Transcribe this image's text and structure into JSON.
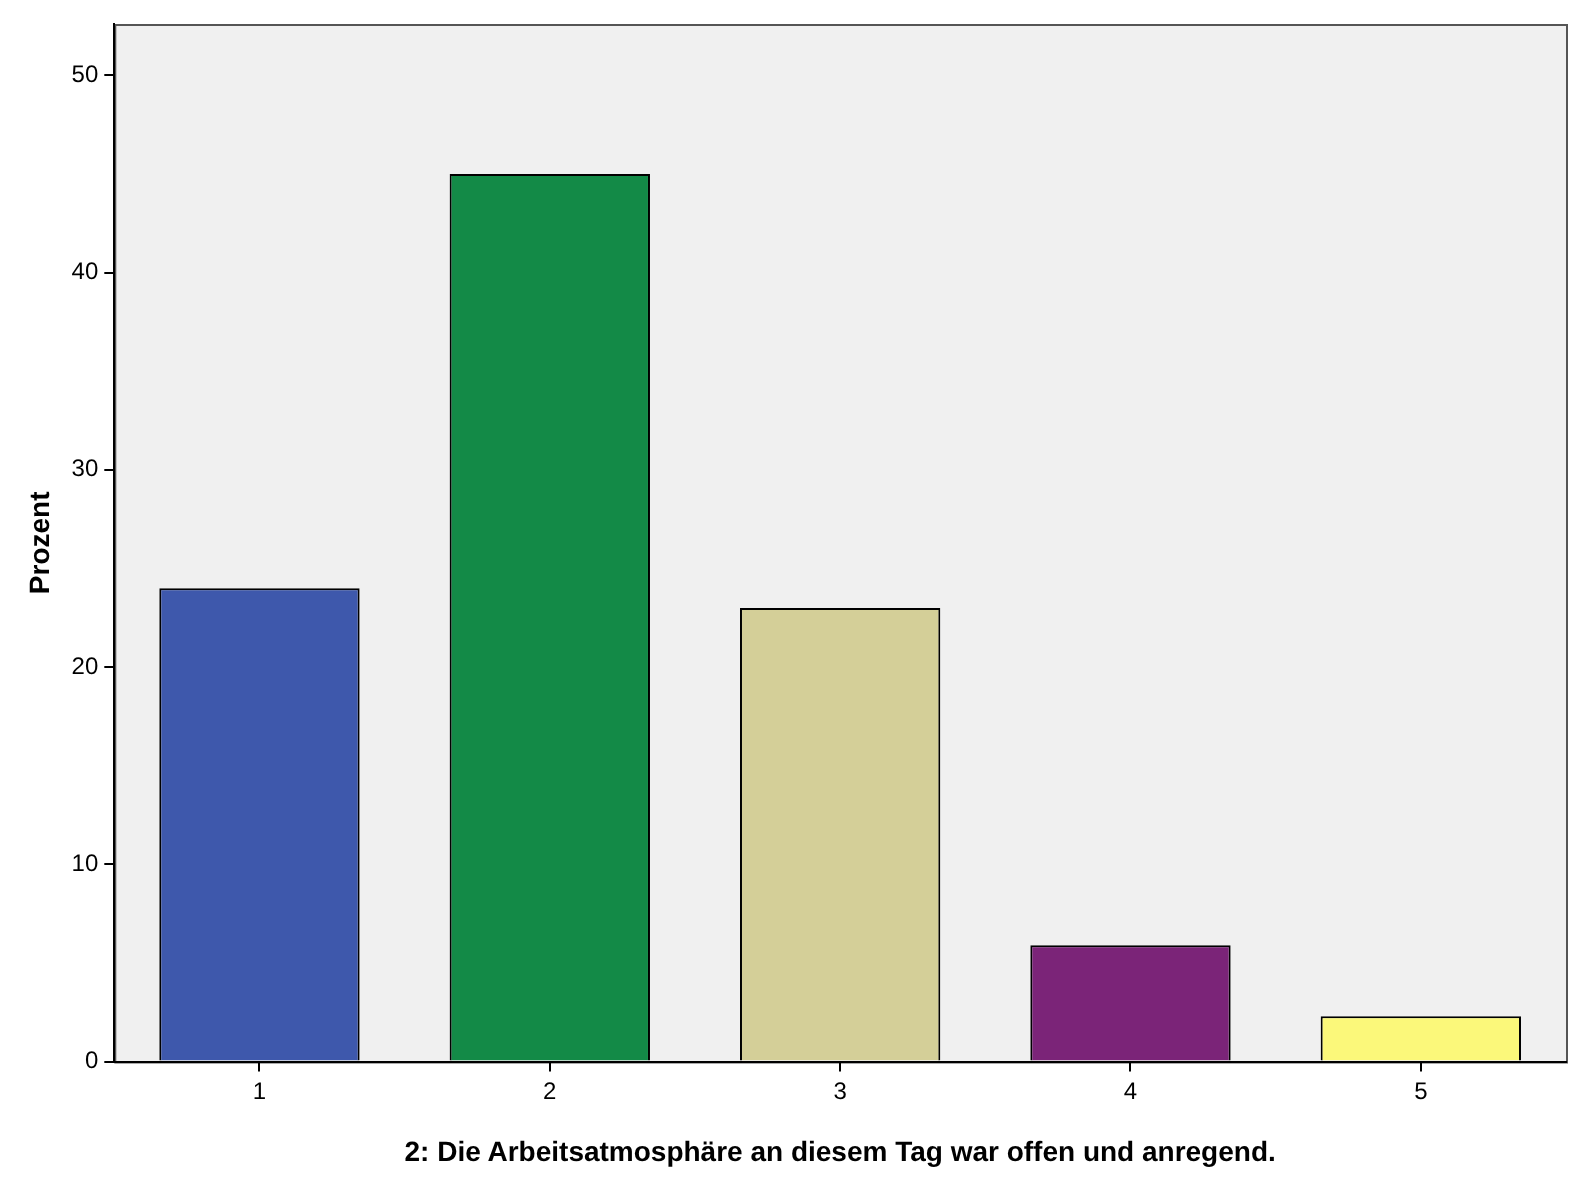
{
  "chart_data": {
    "type": "bar",
    "xlabel": "2: Die Arbeitsatmosphäre an diesem Tag war offen und anregend.",
    "ylabel": "Prozent",
    "categories": [
      "1",
      "2",
      "3",
      "4",
      "5"
    ],
    "values": [
      24,
      45,
      23,
      5.9,
      2.3
    ],
    "colors": [
      "#3e58ac",
      "#138a47",
      "#d4cf98",
      "#7b2478",
      "#fbf87a"
    ],
    "ylim": [
      0,
      52.6
    ],
    "yticks": [
      0,
      10,
      20,
      30,
      40,
      50
    ],
    "grid": false
  }
}
